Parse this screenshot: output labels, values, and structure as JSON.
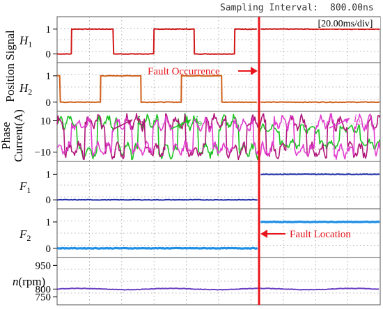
{
  "header": {
    "sampling_label": "Sampling Interval:",
    "sampling_value": "800.00ns",
    "timebase": "[20.00ms/div]"
  },
  "left_labels": {
    "position_signal": "Position Signal",
    "phase_current_1": "Phase",
    "phase_current_2": "Current(A)"
  },
  "annotations": {
    "fault_occurrence": "Fault Occurrence",
    "fault_location": "Fault Location",
    "arrow_color": "#e8141b"
  },
  "colors": {
    "h1": "#d01818",
    "h2": "#d0601a",
    "i1": "#b0157a",
    "i9": "#18c21e",
    "i2": "#e13ccf",
    "f1": "#1f2ea8",
    "f2": "#1f8fe6",
    "n": "#6a3fc2",
    "fault_line": "#e8141b",
    "grid": "#9a9a9a",
    "frame": "#555555"
  },
  "chart_data": {
    "type": "line",
    "x_unit": "ms",
    "x_per_div": 20,
    "x_divisions": 10,
    "fault_time_ms": 125,
    "panels": [
      {
        "id": "H1",
        "label_main": "H",
        "label_sub": "1",
        "ticks": [
          "1",
          "0"
        ],
        "tick_values": [
          1,
          0
        ],
        "ylim": [
          -0.35,
          1.5
        ],
        "series": [
          {
            "color_key": "h1",
            "segments": [
              [
                0,
                0
              ],
              [
                9,
                0
              ],
              [
                9,
                1
              ],
              [
                35,
                1
              ],
              [
                35,
                0
              ],
              [
                60,
                0
              ],
              [
                60,
                1
              ],
              [
                85,
                1
              ],
              [
                85,
                0
              ],
              [
                110,
                0
              ],
              [
                110,
                1
              ],
              [
                124,
                1
              ]
            ]
          },
          {
            "color_key": "h1",
            "segments": [
              [
                126,
                1
              ],
              [
                200,
                1
              ]
            ]
          }
        ]
      },
      {
        "id": "H2",
        "label_main": "H",
        "label_sub": "2",
        "ticks": [
          "1",
          "0"
        ],
        "tick_values": [
          1,
          0
        ],
        "ylim": [
          -0.35,
          1.5
        ],
        "series": [
          {
            "color_key": "h2",
            "segments": [
              [
                0,
                1
              ],
              [
                2,
                1
              ],
              [
                2,
                0
              ],
              [
                27,
                0
              ],
              [
                27,
                1
              ],
              [
                52,
                1
              ],
              [
                52,
                0
              ],
              [
                77,
                0
              ],
              [
                77,
                1
              ],
              [
                102,
                1
              ],
              [
                102,
                0
              ],
              [
                124,
                0
              ]
            ]
          },
          {
            "color_key": "h2",
            "segments": [
              [
                126,
                0
              ],
              [
                200,
                0
              ]
            ]
          }
        ]
      },
      {
        "id": "I",
        "ticks": [
          "10",
          "−10"
        ],
        "tick_values": [
          10,
          -10
        ],
        "ylim": [
          -16,
          16
        ],
        "series_labels": [
          {
            "text": "i",
            "sub": "1",
            "color_key": "i1"
          },
          {
            "text": "i",
            "sub": "9",
            "color_key": "i9"
          },
          {
            "text": "i",
            "sub": "2",
            "color_key": "i2"
          }
        ]
      },
      {
        "id": "F1",
        "label_main": "F",
        "label_sub": "1",
        "ticks": [
          "1",
          "0"
        ],
        "tick_values": [
          1,
          0
        ],
        "ylim": [
          -0.35,
          1.5
        ],
        "series": [
          {
            "color_key": "f1",
            "segments": [
              [
                0,
                0
              ],
              [
                124,
                0
              ]
            ]
          },
          {
            "color_key": "f1",
            "segments": [
              [
                126,
                1
              ],
              [
                200,
                1
              ]
            ]
          }
        ]
      },
      {
        "id": "F2",
        "label_main": "F",
        "label_sub": "2",
        "ticks": [
          "1",
          "0"
        ],
        "tick_values": [
          1,
          0
        ],
        "ylim": [
          -0.35,
          1.5
        ],
        "series": [
          {
            "color_key": "f2",
            "segments": [
              [
                0,
                0
              ],
              [
                124,
                0
              ]
            ]
          },
          {
            "color_key": "f2",
            "segments": [
              [
                126,
                1
              ],
              [
                200,
                1
              ]
            ]
          }
        ]
      },
      {
        "id": "N",
        "label_main": "n",
        "label_unit": "(rpm)",
        "ticks": [
          "950",
          "800",
          "750"
        ],
        "tick_values": [
          950,
          800,
          750
        ],
        "ylim": [
          700,
          1000
        ],
        "series": [
          {
            "color_key": "n",
            "segments": [
              [
                0,
                800
              ],
              [
                200,
                800
              ]
            ]
          }
        ]
      }
    ]
  }
}
